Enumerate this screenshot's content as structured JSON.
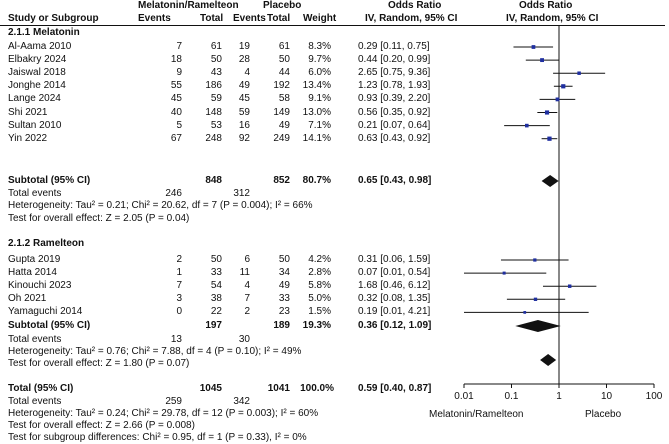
{
  "header": {
    "study": "Study or Subgroup",
    "group1": "Melatonin/Ramelteon",
    "group2": "Placebo",
    "events": "Events",
    "total": "Total",
    "weight": "Weight",
    "or_title": "Odds Ratio",
    "or_method": "IV, Random, 95% CI",
    "plot_title": "Odds Ratio",
    "plot_method": "IV, Random, 95% CI"
  },
  "subgroups": [
    {
      "title": "2.1.1 Melatonin",
      "studies": [
        {
          "name": "Al-Aama 2010",
          "e1": "7",
          "n1": "61",
          "e2": "19",
          "n2": "61",
          "weight": "8.3%",
          "ci": "0.29 [0.11, 0.75]"
        },
        {
          "name": "Elbakry 2024",
          "e1": "18",
          "n1": "50",
          "e2": "28",
          "n2": "50",
          "weight": "9.7%",
          "ci": "0.44 [0.20, 0.99]"
        },
        {
          "name": "Jaiswal 2018",
          "e1": "9",
          "n1": "43",
          "e2": "4",
          "n2": "44",
          "weight": "6.0%",
          "ci": "2.65 [0.75, 9.36]"
        },
        {
          "name": "Jonghe 2014",
          "e1": "55",
          "n1": "186",
          "e2": "49",
          "n2": "192",
          "weight": "13.4%",
          "ci": "1.23 [0.78, 1.93]"
        },
        {
          "name": "Lange 2024",
          "e1": "45",
          "n1": "59",
          "e2": "45",
          "n2": "58",
          "weight": "9.1%",
          "ci": "0.93 [0.39, 2.20]"
        },
        {
          "name": "Shi 2021",
          "e1": "40",
          "n1": "148",
          "e2": "59",
          "n2": "149",
          "weight": "13.0%",
          "ci": "0.56 [0.35, 0.92]"
        },
        {
          "name": "Sultan 2010",
          "e1": "5",
          "n1": "53",
          "e2": "16",
          "n2": "49",
          "weight": "7.1%",
          "ci": "0.21 [0.07, 0.64]"
        },
        {
          "name": "Yin 2022",
          "e1": "67",
          "n1": "248",
          "e2": "92",
          "n2": "249",
          "weight": "14.1%",
          "ci": "0.63 [0.43, 0.92]"
        }
      ],
      "subtotal": {
        "label": "Subtotal (95% CI)",
        "n1": "848",
        "n2": "852",
        "weight": "80.7%",
        "ci": "0.65 [0.43, 0.98]"
      },
      "total_events": {
        "label": "Total events",
        "e1": "246",
        "e2": "312"
      },
      "heterogeneity": "Heterogeneity: Tau² = 0.21; Chi² = 20.62, df = 7 (P = 0.004); I² = 66%",
      "overall": "Test for overall effect: Z = 2.05 (P = 0.04)"
    },
    {
      "title": "2.1.2 Ramelteon",
      "studies": [
        {
          "name": "Gupta 2019",
          "e1": "2",
          "n1": "50",
          "e2": "6",
          "n2": "50",
          "weight": "4.2%",
          "ci": "0.31 [0.06, 1.59]"
        },
        {
          "name": "Hatta 2014",
          "e1": "1",
          "n1": "33",
          "e2": "11",
          "n2": "34",
          "weight": "2.8%",
          "ci": "0.07 [0.01, 0.54]"
        },
        {
          "name": "Kinouchi 2023",
          "e1": "7",
          "n1": "54",
          "e2": "4",
          "n2": "49",
          "weight": "5.8%",
          "ci": "1.68 [0.46, 6.12]"
        },
        {
          "name": "Oh 2021",
          "e1": "3",
          "n1": "38",
          "e2": "7",
          "n2": "33",
          "weight": "5.0%",
          "ci": "0.32 [0.08, 1.35]"
        },
        {
          "name": "Yamaguchi 2014",
          "e1": "0",
          "n1": "22",
          "e2": "2",
          "n2": "23",
          "weight": "1.5%",
          "ci": "0.19 [0.01, 4.21]"
        }
      ],
      "subtotal": {
        "label": "Subtotal (95% CI)",
        "n1": "197",
        "n2": "189",
        "weight": "19.3%",
        "ci": "0.36 [0.12, 1.09]"
      },
      "total_events": {
        "label": "Total events",
        "e1": "13",
        "e2": "30"
      },
      "heterogeneity": "Heterogeneity: Tau² = 0.76; Chi² = 7.88, df = 4 (P = 0.10); I² = 49%",
      "overall": "Test for overall effect: Z = 1.80 (P = 0.07)"
    }
  ],
  "total": {
    "label": "Total (95% CI)",
    "n1": "1045",
    "n2": "1041",
    "weight": "100.0%",
    "ci": "0.59 [0.40, 0.87]",
    "events_label": "Total events",
    "e1": "259",
    "e2": "342",
    "heterogeneity": "Heterogeneity: Tau² = 0.24; Chi² = 29.78, df = 12 (P = 0.003); I² = 60%",
    "overall": "Test for overall effect: Z = 2.66 (P = 0.008)",
    "subgroup_diff": "Test for subgroup differences: Chi² = 0.95, df = 1 (P = 0.33), I² = 0%"
  },
  "chart_data": {
    "type": "forest",
    "title": "Odds Ratio",
    "method": "IV, Random, 95% CI",
    "scale": "log",
    "xlim": [
      0.01,
      100
    ],
    "ticks": [
      0.01,
      0.1,
      1,
      10,
      100
    ],
    "tick_labels": [
      "0.01",
      "0.1",
      "1",
      "10",
      "100"
    ],
    "reference_line": 1,
    "favours_left": "Melatonin/Ramelteon",
    "favours_right": "Placebo",
    "studies": [
      {
        "name": "Al-Aama 2010",
        "or": 0.29,
        "lo": 0.11,
        "hi": 0.75,
        "weight": 8.3
      },
      {
        "name": "Elbakry 2024",
        "or": 0.44,
        "lo": 0.2,
        "hi": 0.99,
        "weight": 9.7
      },
      {
        "name": "Jaiswal 2018",
        "or": 2.65,
        "lo": 0.75,
        "hi": 9.36,
        "weight": 6.0
      },
      {
        "name": "Jonghe 2014",
        "or": 1.23,
        "lo": 0.78,
        "hi": 1.93,
        "weight": 13.4
      },
      {
        "name": "Lange 2024",
        "or": 0.93,
        "lo": 0.39,
        "hi": 2.2,
        "weight": 9.1
      },
      {
        "name": "Shi 2021",
        "or": 0.56,
        "lo": 0.35,
        "hi": 0.92,
        "weight": 13.0
      },
      {
        "name": "Sultan 2010",
        "or": 0.21,
        "lo": 0.07,
        "hi": 0.64,
        "weight": 7.1
      },
      {
        "name": "Yin 2022",
        "or": 0.63,
        "lo": 0.43,
        "hi": 0.92,
        "weight": 14.1
      },
      {
        "name": "Gupta 2019",
        "or": 0.31,
        "lo": 0.06,
        "hi": 1.59,
        "weight": 4.2
      },
      {
        "name": "Hatta 2014",
        "or": 0.07,
        "lo": 0.01,
        "hi": 0.54,
        "weight": 2.8
      },
      {
        "name": "Kinouchi 2023",
        "or": 1.68,
        "lo": 0.46,
        "hi": 6.12,
        "weight": 5.8
      },
      {
        "name": "Oh 2021",
        "or": 0.32,
        "lo": 0.08,
        "hi": 1.35,
        "weight": 5.0
      },
      {
        "name": "Yamaguchi 2014",
        "or": 0.19,
        "lo": 0.01,
        "hi": 4.21,
        "weight": 1.5
      }
    ],
    "diamonds": [
      {
        "name": "Subtotal Melatonin",
        "or": 0.65,
        "lo": 0.43,
        "hi": 0.98
      },
      {
        "name": "Subtotal Ramelteon",
        "or": 0.36,
        "lo": 0.12,
        "hi": 1.09
      },
      {
        "name": "Total",
        "or": 0.59,
        "lo": 0.4,
        "hi": 0.87
      }
    ],
    "colors": {
      "square": "#1f2fa0",
      "line": "#111111"
    }
  }
}
